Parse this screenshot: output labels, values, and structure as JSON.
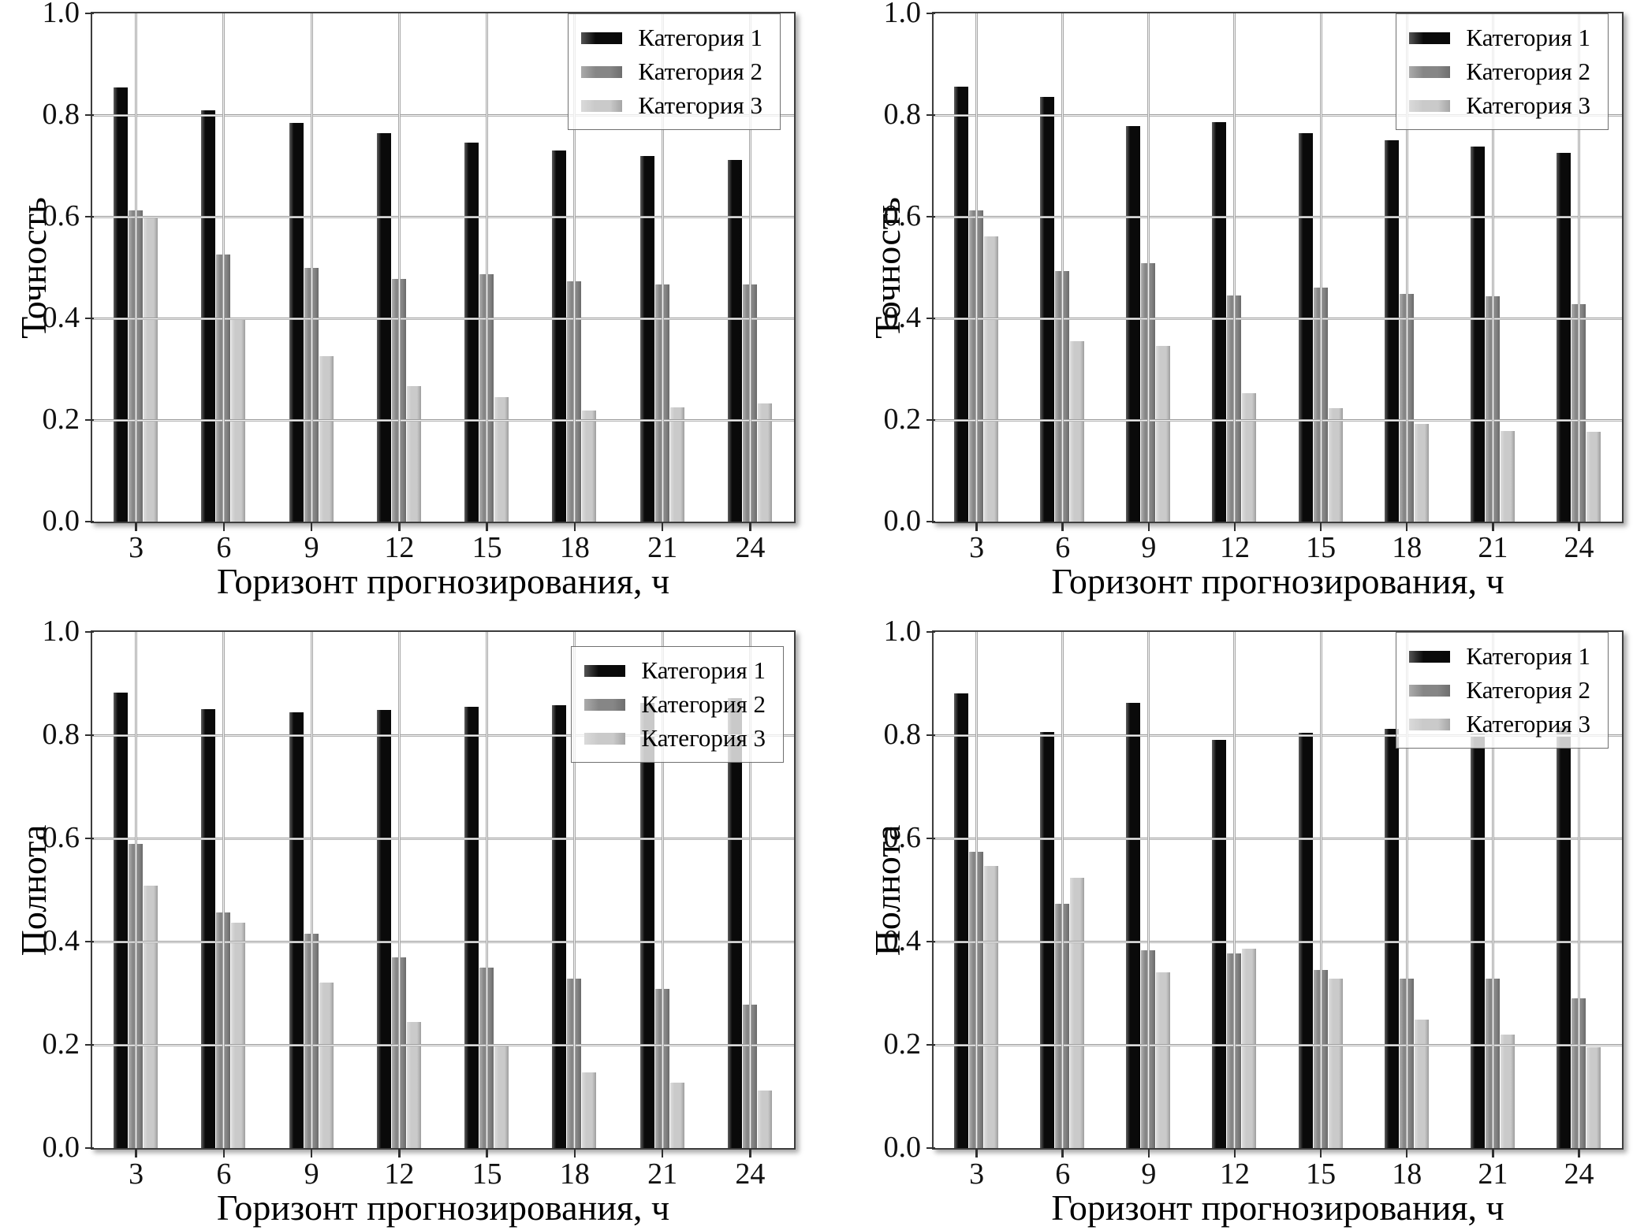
{
  "figure": {
    "background": "#ffffff",
    "series_colors": [
      "#0a0a0a",
      "#868686",
      "#cacaca"
    ],
    "grid_color": "#9c9c9c",
    "axis_color": "#3d3d3d",
    "text_color": "#111111"
  },
  "chart_data": [
    {
      "id": "precision-left",
      "type": "bar",
      "title": "",
      "xlabel": "Горизонт прогнозирования, ч",
      "ylabel": "Точность",
      "categories": [
        "3",
        "6",
        "9",
        "12",
        "15",
        "18",
        "21",
        "24"
      ],
      "ylim": [
        0,
        1
      ],
      "yticks": [
        0,
        0.2,
        0.4,
        0.6,
        0.8,
        1.0
      ],
      "grid": true,
      "legend_position": "top-right",
      "series": [
        {
          "name": "Категория 1",
          "values": [
            0.855,
            0.81,
            0.785,
            0.765,
            0.745,
            0.73,
            0.72,
            0.712
          ]
        },
        {
          "name": "Категория 2",
          "values": [
            0.612,
            0.525,
            0.5,
            0.478,
            0.487,
            0.473,
            0.466,
            0.466
          ]
        },
        {
          "name": "Категория 3",
          "values": [
            0.597,
            0.4,
            0.326,
            0.267,
            0.245,
            0.218,
            0.225,
            0.232
          ]
        }
      ]
    },
    {
      "id": "precision-right",
      "type": "bar",
      "title": "",
      "xlabel": "Горизонт прогнозирования, ч",
      "ylabel": "Точность",
      "categories": [
        "3",
        "6",
        "9",
        "12",
        "15",
        "18",
        "21",
        "24"
      ],
      "ylim": [
        0,
        1
      ],
      "yticks": [
        0,
        0.2,
        0.4,
        0.6,
        0.8,
        1.0
      ],
      "grid": true,
      "legend_position": "top-right",
      "series": [
        {
          "name": "Категория 1",
          "values": [
            0.856,
            0.835,
            0.778,
            0.786,
            0.764,
            0.751,
            0.738,
            0.725
          ]
        },
        {
          "name": "Категория 2",
          "values": [
            0.613,
            0.493,
            0.509,
            0.445,
            0.46,
            0.448,
            0.444,
            0.428
          ]
        },
        {
          "name": "Категория 3",
          "values": [
            0.562,
            0.355,
            0.346,
            0.253,
            0.224,
            0.192,
            0.178,
            0.176
          ]
        }
      ]
    },
    {
      "id": "recall-left",
      "type": "bar",
      "title": "",
      "xlabel": "Горизонт прогнозирования, ч",
      "ylabel": "Полнота",
      "categories": [
        "3",
        "6",
        "9",
        "12",
        "15",
        "18",
        "21",
        "24"
      ],
      "ylim": [
        0,
        1
      ],
      "yticks": [
        0,
        0.2,
        0.4,
        0.6,
        0.8,
        1.0
      ],
      "grid": true,
      "legend_position": "top-right",
      "series": [
        {
          "name": "Категория 1",
          "values": [
            0.883,
            0.85,
            0.845,
            0.849,
            0.855,
            0.858,
            0.862,
            0.872
          ]
        },
        {
          "name": "Категория 2",
          "values": [
            0.59,
            0.456,
            0.415,
            0.369,
            0.349,
            0.328,
            0.308,
            0.278
          ]
        },
        {
          "name": "Категория 3",
          "values": [
            0.508,
            0.437,
            0.321,
            0.245,
            0.2,
            0.146,
            0.126,
            0.111
          ]
        }
      ]
    },
    {
      "id": "recall-right",
      "type": "bar",
      "title": "",
      "xlabel": "Горизонт прогнозирования, ч",
      "ylabel": "Полнота",
      "categories": [
        "3",
        "6",
        "9",
        "12",
        "15",
        "18",
        "21",
        "24"
      ],
      "ylim": [
        0,
        1
      ],
      "yticks": [
        0,
        0.2,
        0.4,
        0.6,
        0.8,
        1.0
      ],
      "grid": true,
      "legend_position": "top-right",
      "series": [
        {
          "name": "Категория 1",
          "values": [
            0.881,
            0.806,
            0.862,
            0.791,
            0.804,
            0.812,
            0.803,
            0.815
          ]
        },
        {
          "name": "Категория 2",
          "values": [
            0.574,
            0.474,
            0.383,
            0.377,
            0.345,
            0.329,
            0.329,
            0.29
          ]
        },
        {
          "name": "Категория 3",
          "values": [
            0.547,
            0.523,
            0.341,
            0.387,
            0.329,
            0.249,
            0.22,
            0.196
          ]
        }
      ]
    }
  ]
}
